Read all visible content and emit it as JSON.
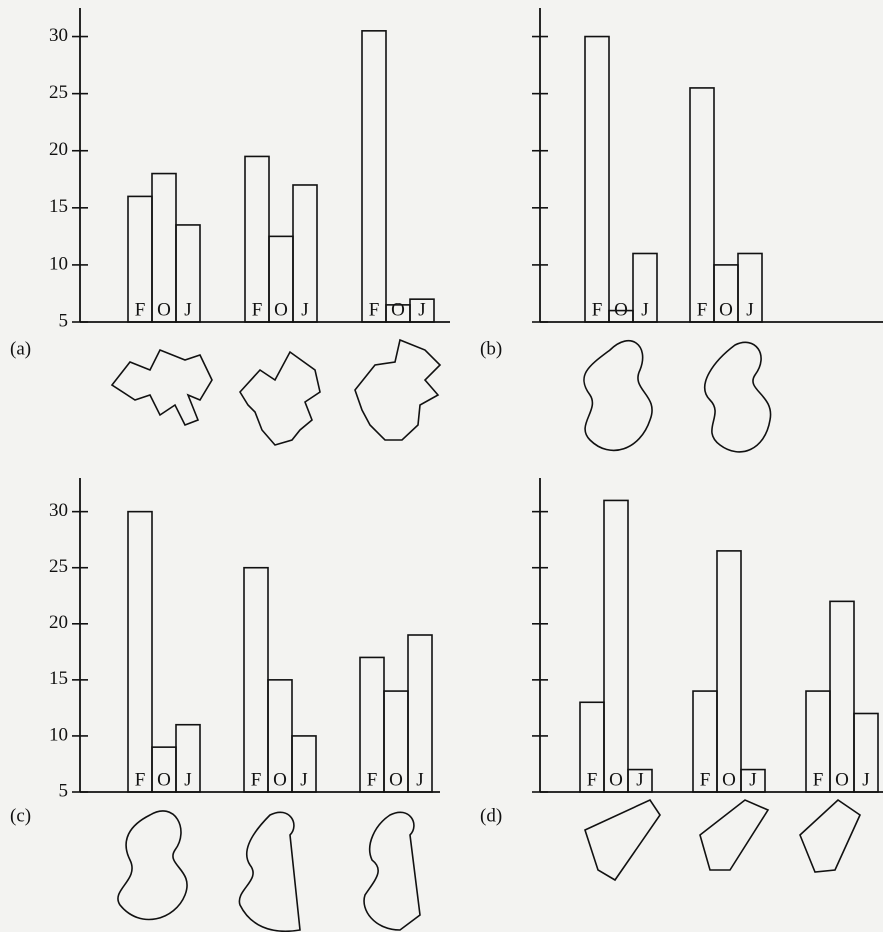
{
  "chart_data": [
    {
      "type": "bar",
      "label": "(a)",
      "color": "#111111",
      "ylim": [
        5,
        32.5
      ],
      "yticks": [
        5,
        10,
        15,
        20,
        25,
        30
      ],
      "y_tick_labels": true,
      "series": [
        {
          "name": "F",
          "values": [
            16,
            19.5,
            30.5
          ]
        },
        {
          "name": "O",
          "values": [
            18,
            12.5,
            6.5
          ]
        },
        {
          "name": "J",
          "values": [
            13.5,
            17,
            7
          ]
        }
      ]
    },
    {
      "type": "bar",
      "label": "(b)",
      "color": "#111111",
      "ylim": [
        5,
        32.5
      ],
      "yticks": [
        5,
        10,
        15,
        20,
        25,
        30
      ],
      "y_tick_labels": false,
      "series": [
        {
          "name": "F",
          "values": [
            30,
            25.5
          ]
        },
        {
          "name": "O",
          "values": [
            6,
            10
          ]
        },
        {
          "name": "J",
          "values": [
            11,
            11
          ]
        }
      ]
    },
    {
      "type": "bar",
      "label": "(c)",
      "color": "#111111",
      "ylim": [
        5,
        33
      ],
      "yticks": [
        5,
        10,
        15,
        20,
        25,
        30
      ],
      "y_tick_labels": true,
      "series": [
        {
          "name": "F",
          "values": [
            30,
            25,
            17
          ]
        },
        {
          "name": "O",
          "values": [
            9,
            15,
            14
          ]
        },
        {
          "name": "J",
          "values": [
            11,
            10,
            19
          ]
        }
      ]
    },
    {
      "type": "bar",
      "label": "(d)",
      "color": "#111111",
      "ylim": [
        5,
        33
      ],
      "yticks": [
        5,
        10,
        15,
        20,
        25,
        30
      ],
      "y_tick_labels": false,
      "series": [
        {
          "name": "F",
          "values": [
            13,
            14,
            14
          ]
        },
        {
          "name": "O",
          "values": [
            31,
            26.5,
            22
          ]
        },
        {
          "name": "J",
          "values": [
            7,
            7,
            12
          ]
        }
      ]
    }
  ]
}
